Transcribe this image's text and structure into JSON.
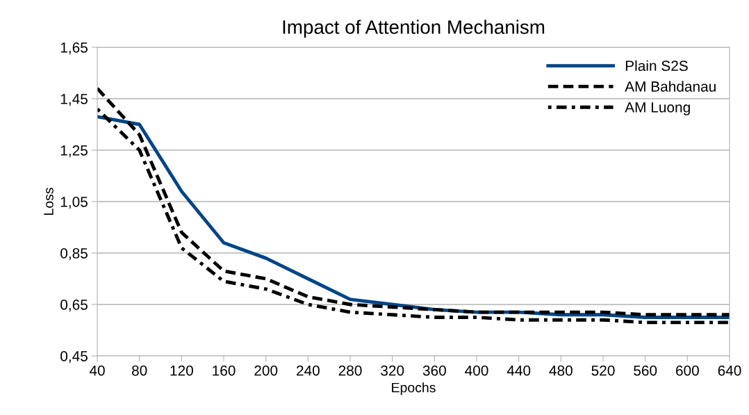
{
  "chart_data": {
    "type": "line",
    "title": "Impact of Attention Mechanism",
    "xlabel": "Epochs",
    "ylabel": "Loss",
    "categories": [
      "40",
      "80",
      "120",
      "160",
      "200",
      "240",
      "280",
      "320",
      "360",
      "400",
      "440",
      "480",
      "520",
      "560",
      "600",
      "640"
    ],
    "series": [
      {
        "name": "Plain S2S",
        "color": "#004586",
        "line_style": "solid",
        "values": [
          1.38,
          1.35,
          1.09,
          0.89,
          0.83,
          0.75,
          0.67,
          0.65,
          0.63,
          0.62,
          0.62,
          0.61,
          0.61,
          0.6,
          0.6,
          0.6
        ]
      },
      {
        "name": "AM Bahdanau",
        "color": "#000000",
        "line_style": "dashed",
        "values": [
          1.49,
          1.31,
          0.93,
          0.78,
          0.75,
          0.68,
          0.65,
          0.64,
          0.63,
          0.62,
          0.62,
          0.62,
          0.62,
          0.61,
          0.61,
          0.61
        ]
      },
      {
        "name": "AM Luong",
        "color": "#000000",
        "line_style": "dotted",
        "values": [
          1.41,
          1.25,
          0.87,
          0.74,
          0.71,
          0.65,
          0.62,
          0.61,
          0.6,
          0.6,
          0.59,
          0.59,
          0.59,
          0.58,
          0.58,
          0.58
        ]
      }
    ],
    "ylim": [
      0.45,
      1.65
    ],
    "yticks": [
      {
        "value": 0.45,
        "label": "0,45"
      },
      {
        "value": 0.65,
        "label": "0,65"
      },
      {
        "value": 0.85,
        "label": "0,85"
      },
      {
        "value": 1.05,
        "label": "1,05"
      },
      {
        "value": 1.25,
        "label": "1,25"
      },
      {
        "value": 1.45,
        "label": "1,45"
      },
      {
        "value": 1.65,
        "label": "1,65"
      }
    ],
    "grid": "y",
    "legend": "top right"
  }
}
